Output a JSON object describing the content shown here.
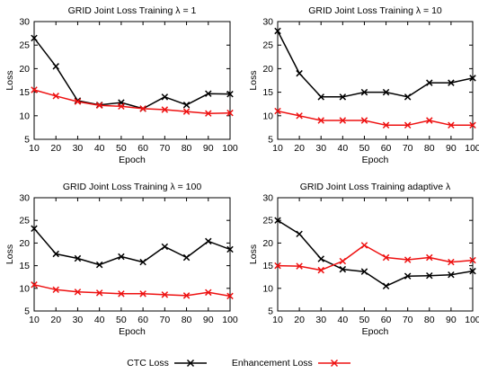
{
  "colors": {
    "ctc": "#000000",
    "enhancement": "#ee1111",
    "axis": "#000000"
  },
  "legend": {
    "ctc_label": "CTC Loss",
    "enh_label": "Enhancement Loss"
  },
  "chart_data": [
    {
      "type": "line",
      "title": "GRID Joint Loss Training λ = 1",
      "xlabel": "Epoch",
      "ylabel": "Loss",
      "x": [
        10,
        20,
        30,
        40,
        50,
        60,
        70,
        80,
        90,
        100
      ],
      "xlim": [
        10,
        100
      ],
      "ylim": [
        5,
        30
      ],
      "yticks": [
        5,
        10,
        15,
        20,
        25,
        30
      ],
      "grid": false,
      "series": [
        {
          "name": "CTC Loss",
          "values": [
            26.5,
            20.5,
            13.2,
            12.3,
            12.8,
            11.5,
            14.0,
            12.3,
            14.7,
            14.6
          ]
        },
        {
          "name": "Enhancement Loss",
          "values": [
            15.5,
            14.2,
            13.0,
            12.2,
            12.0,
            11.5,
            11.3,
            10.9,
            10.5,
            10.6
          ]
        }
      ]
    },
    {
      "type": "line",
      "title": "GRID Joint Loss Training λ = 10",
      "xlabel": "Epoch",
      "ylabel": "Loss",
      "x": [
        10,
        20,
        30,
        40,
        50,
        60,
        70,
        80,
        90,
        100
      ],
      "xlim": [
        10,
        100
      ],
      "ylim": [
        5,
        30
      ],
      "yticks": [
        5,
        10,
        15,
        20,
        25,
        30
      ],
      "grid": false,
      "series": [
        {
          "name": "CTC Loss",
          "values": [
            28.0,
            19.0,
            14.0,
            14.0,
            15.0,
            15.0,
            14.0,
            17.0,
            17.0,
            18.0
          ]
        },
        {
          "name": "Enhancement Loss",
          "values": [
            11.0,
            10.0,
            9.0,
            9.0,
            9.0,
            8.0,
            8.0,
            9.0,
            8.0,
            8.0
          ]
        }
      ]
    },
    {
      "type": "line",
      "title": "GRID Joint Loss Training λ = 100",
      "xlabel": "Epoch",
      "ylabel": "Loss",
      "x": [
        10,
        20,
        30,
        40,
        50,
        60,
        70,
        80,
        90,
        100
      ],
      "xlim": [
        10,
        100
      ],
      "ylim": [
        5,
        30
      ],
      "yticks": [
        5,
        10,
        15,
        20,
        25,
        30
      ],
      "grid": false,
      "series": [
        {
          "name": "CTC Loss",
          "values": [
            23.2,
            17.6,
            16.6,
            15.2,
            17.0,
            15.8,
            19.2,
            16.8,
            20.4,
            18.6
          ]
        },
        {
          "name": "Enhancement Loss",
          "values": [
            10.8,
            9.7,
            9.2,
            9.0,
            8.8,
            8.8,
            8.6,
            8.4,
            9.1,
            8.3
          ]
        }
      ]
    },
    {
      "type": "line",
      "title": "GRID Joint Loss Training adaptive λ",
      "xlabel": "Epoch",
      "ylabel": "Loss",
      "x": [
        10,
        20,
        30,
        40,
        50,
        60,
        70,
        80,
        90,
        100
      ],
      "xlim": [
        10,
        100
      ],
      "ylim": [
        5,
        30
      ],
      "yticks": [
        5,
        10,
        15,
        20,
        25,
        30
      ],
      "grid": false,
      "series": [
        {
          "name": "CTC Loss",
          "values": [
            25.0,
            22.0,
            16.5,
            14.2,
            13.7,
            10.5,
            12.7,
            12.8,
            13.0,
            13.8
          ]
        },
        {
          "name": "Enhancement Loss",
          "values": [
            15.0,
            14.9,
            14.0,
            16.0,
            19.5,
            16.8,
            16.3,
            16.8,
            15.8,
            16.2
          ]
        }
      ]
    }
  ]
}
